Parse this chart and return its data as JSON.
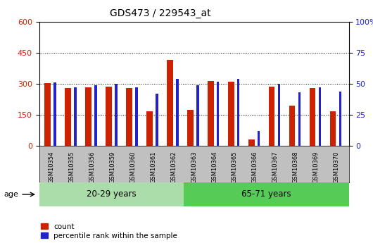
{
  "title": "GDS473 / 229543_at",
  "samples": [
    "GSM10354",
    "GSM10355",
    "GSM10356",
    "GSM10359",
    "GSM10360",
    "GSM10361",
    "GSM10362",
    "GSM10363",
    "GSM10364",
    "GSM10365",
    "GSM10366",
    "GSM10367",
    "GSM10368",
    "GSM10369",
    "GSM10370"
  ],
  "counts": [
    302,
    280,
    284,
    285,
    278,
    168,
    415,
    175,
    315,
    310,
    30,
    285,
    195,
    280,
    168
  ],
  "percentile_ranks": [
    51,
    47,
    49,
    50,
    47,
    42,
    54,
    49,
    52,
    54,
    12,
    50,
    43,
    47,
    44
  ],
  "group1_label": "20-29 years",
  "group2_label": "65-71 years",
  "group1_count": 7,
  "ylim_left": [
    0,
    600
  ],
  "ylim_right": [
    0,
    100
  ],
  "yticks_left": [
    0,
    150,
    300,
    450,
    600
  ],
  "yticks_right": [
    0,
    25,
    50,
    75,
    100
  ],
  "ytick_right_labels": [
    "0",
    "25",
    "50",
    "75",
    "100%"
  ],
  "bar_color_red": "#cc2200",
  "bar_color_blue": "#2222cc",
  "group1_bg": "#aaddaa",
  "group2_bg": "#55cc55",
  "xtick_bg": "#c0c0c0",
  "legend_label_red": "count",
  "legend_label_blue": "percentile rank within the sample",
  "age_label": "age"
}
